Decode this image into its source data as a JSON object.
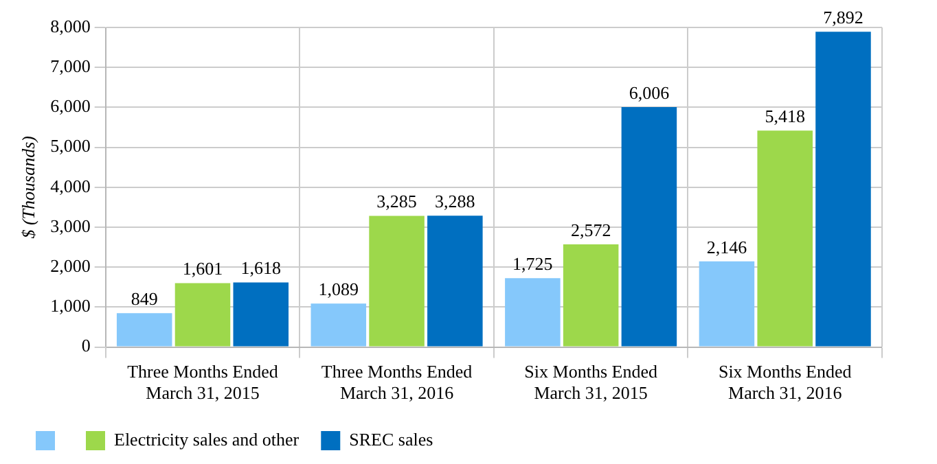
{
  "chart_data": {
    "type": "bar",
    "ylabel": "$ (Thousands)",
    "categories": [
      "Three Months Ended\nMarch 31, 2015",
      "Three Months Ended\nMarch 31, 2016",
      "Six Months Ended\nMarch 31, 2015",
      "Six Months Ended\nMarch 31, 2016"
    ],
    "series": [
      {
        "color": "#85c8fb",
        "values": [
          849,
          1089,
          1725,
          2146
        ],
        "value_labels": [
          "849",
          "1,089",
          "1,725",
          "2,146"
        ]
      },
      {
        "name": "Electricity sales and other",
        "color": "#9dd84b",
        "values": [
          1601,
          3285,
          2572,
          5418
        ],
        "value_labels": [
          "1,601",
          "3,285",
          "2,572",
          "5,418"
        ]
      },
      {
        "name": "SREC sales",
        "color": "#006fc0",
        "values": [
          1618,
          3288,
          6006,
          7892
        ],
        "value_labels": [
          "1,618",
          "3,288",
          "6,006",
          "7,892"
        ]
      }
    ],
    "ylim": [
      0,
      8000
    ],
    "yticks": [
      0,
      {
        "value": 1000,
        "label": "1,000"
      },
      {
        "value": 2000,
        "label": "2,000"
      },
      {
        "value": 3000,
        "label": "3,000"
      },
      {
        "value": 4000,
        "label": "4,000"
      },
      {
        "value": 5000,
        "label": "5,000"
      },
      {
        "value": 6000,
        "label": "6,000"
      },
      {
        "value": 7000,
        "label": "7,000"
      },
      {
        "value": 8000,
        "label": "8,000"
      }
    ],
    "grid": true,
    "legend": "bottom"
  }
}
